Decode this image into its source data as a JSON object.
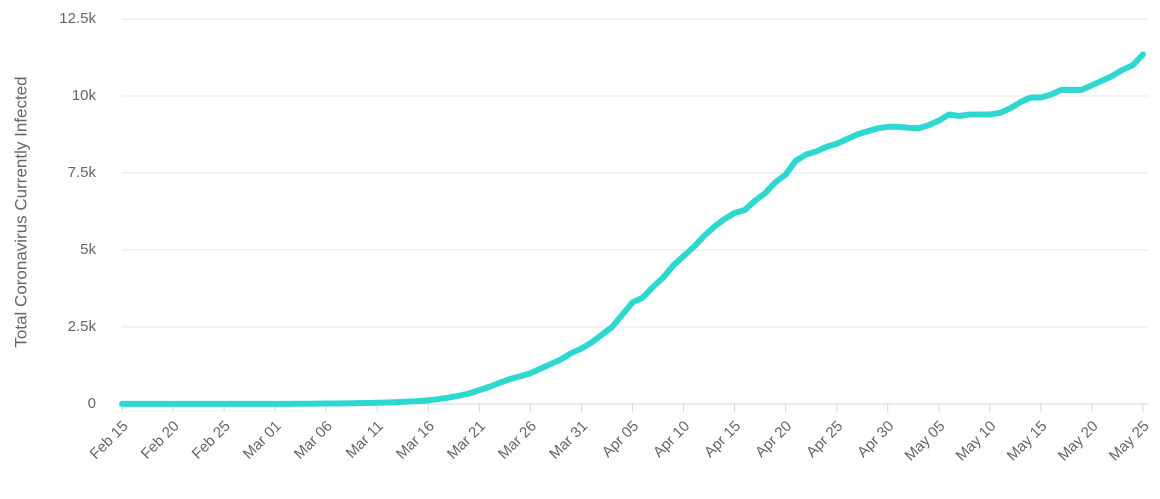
{
  "chart_data": {
    "type": "line",
    "y_label": "Total Coronavirus Currently Infected",
    "categories": [
      "Feb 15",
      null,
      null,
      null,
      null,
      "Feb 20",
      null,
      null,
      null,
      null,
      "Feb 25",
      null,
      null,
      null,
      null,
      "Mar 01",
      null,
      null,
      null,
      null,
      "Mar 06",
      null,
      null,
      null,
      null,
      "Mar 11",
      null,
      null,
      null,
      null,
      "Mar 16",
      null,
      null,
      null,
      null,
      "Mar 21",
      null,
      null,
      null,
      null,
      "Mar 26",
      null,
      null,
      null,
      null,
      "Mar 31",
      null,
      null,
      null,
      null,
      "Apr 05",
      null,
      null,
      null,
      null,
      "Apr 10",
      null,
      null,
      null,
      null,
      "Apr 15",
      null,
      null,
      null,
      null,
      "Apr 20",
      null,
      null,
      null,
      null,
      "Apr 25",
      null,
      null,
      null,
      null,
      "Apr 30",
      null,
      null,
      null,
      null,
      "May 05",
      null,
      null,
      null,
      null,
      "May 10",
      null,
      null,
      null,
      null,
      "May 15",
      null,
      null,
      null,
      null,
      "May 20",
      null,
      null,
      null,
      null,
      "May 25"
    ],
    "series": [
      {
        "color": "#2ed8d0",
        "values": [
          3,
          3,
          3,
          3,
          3,
          3,
          3,
          3,
          3,
          3,
          3,
          3,
          3,
          3,
          4,
          5,
          6,
          8,
          10,
          12,
          15,
          18,
          22,
          27,
          33,
          40,
          50,
          62,
          78,
          95,
          120,
          160,
          210,
          270,
          340,
          450,
          560,
          690,
          810,
          900,
          1000,
          1150,
          1300,
          1450,
          1650,
          1800,
          2000,
          2250,
          2500,
          2900,
          3300,
          3450,
          3800,
          4100,
          4500,
          4800,
          5100,
          5450,
          5750,
          6000,
          6200,
          6300,
          6600,
          6850,
          7200,
          7450,
          7900,
          8100,
          8200,
          8350,
          8450,
          8600,
          8750,
          8850,
          8950,
          9000,
          9000,
          8970,
          8950,
          9050,
          9200,
          9400,
          9350,
          9400,
          9400,
          9400,
          9450,
          9600,
          9800,
          9950,
          9950,
          10050,
          10200,
          10200,
          10200,
          10350,
          10500,
          10650,
          10850,
          11000,
          11350
        ]
      }
    ],
    "ylim": [
      0,
      12500
    ],
    "yticks": [
      0,
      {
        "value": 2500,
        "label": "2.5k"
      },
      {
        "value": 5000,
        "label": "5k"
      },
      {
        "value": 7500,
        "label": "7.5k"
      },
      {
        "value": 10000,
        "label": "10k"
      },
      {
        "value": 12500,
        "label": "12.5k"
      }
    ],
    "grid": true
  }
}
